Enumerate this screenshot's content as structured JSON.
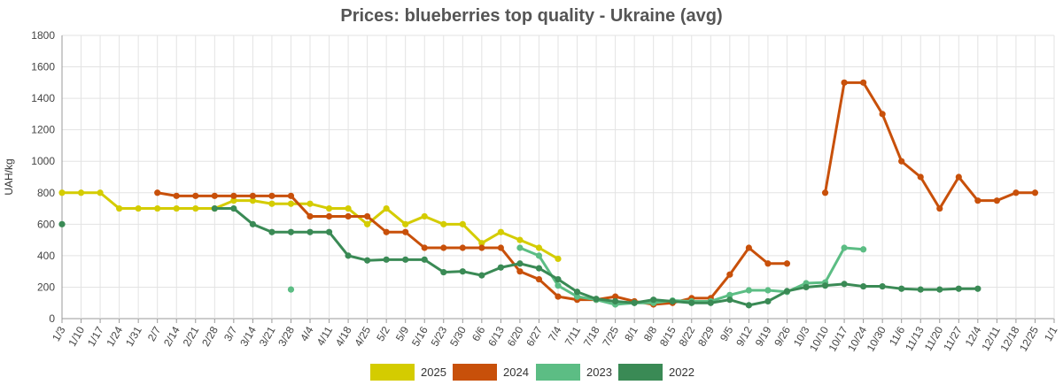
{
  "chart_data": {
    "type": "line",
    "title": "Prices: blueberries top quality - Ukraine (avg)",
    "xlabel": "",
    "ylabel": "UAH/kg",
    "ylim": [
      0,
      1800
    ],
    "yticks": [
      "0",
      "200",
      "400",
      "600",
      "800",
      "1000",
      "1200",
      "1400",
      "1600",
      "1800"
    ],
    "categories": [
      "1/3",
      "1/10",
      "1/17",
      "1/24",
      "1/31",
      "2/7",
      "2/14",
      "2/21",
      "2/28",
      "3/7",
      "3/14",
      "3/21",
      "3/28",
      "4/4",
      "4/11",
      "4/18",
      "4/25",
      "5/2",
      "5/9",
      "5/16",
      "5/23",
      "5/30",
      "6/6",
      "6/13",
      "6/20",
      "6/27",
      "7/4",
      "7/11",
      "7/18",
      "7/25",
      "8/1",
      "8/8",
      "8/15",
      "8/22",
      "8/29",
      "9/5",
      "9/12",
      "9/19",
      "9/26",
      "10/3",
      "10/10",
      "10/17",
      "10/24",
      "10/30",
      "11/6",
      "11/13",
      "11/20",
      "11/27",
      "12/4",
      "12/11",
      "12/18",
      "12/25",
      "1/1"
    ],
    "grid": true,
    "legend_position": "bottom",
    "series": [
      {
        "name": "2025",
        "color": "#d4cc00",
        "values": [
          800,
          800,
          800,
          700,
          700,
          700,
          700,
          700,
          700,
          750,
          750,
          730,
          730,
          730,
          700,
          700,
          600,
          700,
          600,
          650,
          600,
          600,
          480,
          550,
          500,
          450,
          380,
          null,
          null,
          null,
          null,
          null,
          null,
          null,
          null,
          null,
          null,
          null,
          null,
          null,
          null,
          null,
          null,
          null,
          null,
          null,
          null,
          null,
          null,
          null,
          null,
          null,
          null
        ]
      },
      {
        "name": "2024",
        "color": "#c8500a",
        "values": [
          null,
          null,
          null,
          null,
          null,
          800,
          780,
          780,
          780,
          780,
          780,
          780,
          780,
          650,
          650,
          650,
          650,
          550,
          550,
          450,
          450,
          450,
          450,
          450,
          300,
          250,
          140,
          120,
          120,
          140,
          110,
          90,
          100,
          130,
          130,
          280,
          450,
          350,
          350,
          null,
          800,
          1500,
          1500,
          1300,
          1000,
          900,
          700,
          900,
          750,
          750,
          800,
          800,
          null
        ]
      },
      {
        "name": "2023",
        "color": "#5cbd84",
        "values": [
          null,
          null,
          null,
          null,
          null,
          null,
          null,
          null,
          null,
          null,
          null,
          null,
          185,
          null,
          null,
          null,
          null,
          null,
          null,
          null,
          null,
          null,
          null,
          null,
          450,
          400,
          210,
          140,
          120,
          90,
          100,
          100,
          115,
          110,
          110,
          150,
          180,
          180,
          170,
          225,
          230,
          450,
          440,
          null,
          null,
          null,
          null,
          null,
          null,
          null,
          null,
          null,
          null
        ]
      },
      {
        "name": "2022",
        "color": "#3a8a55",
        "values": [
          600,
          null,
          null,
          null,
          null,
          null,
          null,
          null,
          700,
          700,
          600,
          550,
          550,
          550,
          550,
          400,
          370,
          375,
          375,
          375,
          295,
          300,
          275,
          325,
          350,
          320,
          250,
          170,
          125,
          110,
          100,
          120,
          110,
          100,
          100,
          120,
          85,
          110,
          175,
          200,
          210,
          220,
          205,
          205,
          190,
          185,
          185,
          190,
          190,
          null,
          null,
          null,
          null
        ]
      }
    ]
  }
}
